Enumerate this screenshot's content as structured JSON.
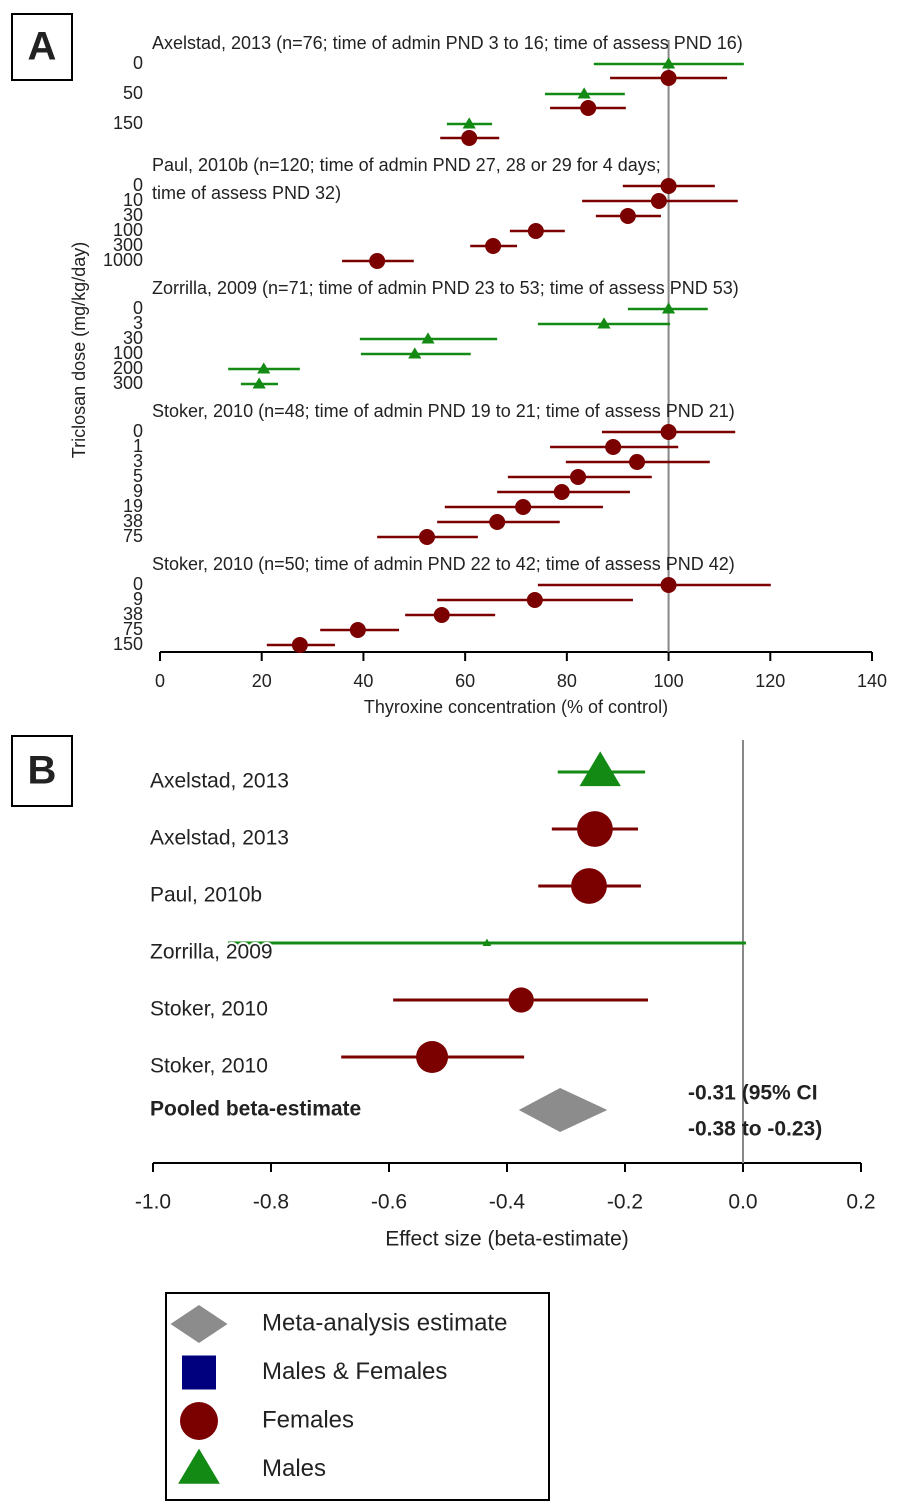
{
  "chart_data": [
    {
      "type": "forest",
      "panel_label": "A",
      "ylabel": "Triclosan dose (mg/kg/day)",
      "xlabel": "Thyroxine concentration (% of control)",
      "xlim": [
        0,
        140
      ],
      "xticks": [
        0,
        20,
        40,
        60,
        80,
        100,
        120,
        140
      ],
      "reference_line": 100,
      "studies": [
        {
          "label_lines": [
            "Axelstad, 2013 (n=76; time of admin PND 3 to 16; time of assess PND 16)"
          ],
          "doses": [
            "0",
            "50",
            "150"
          ],
          "series": [
            {
              "color": "#138a13",
              "shape": "triangle",
              "values": [
                100,
                83.4,
                60.8
              ],
              "lower": [
                85.3,
                75.7,
                56.4
              ],
              "upper": [
                114.8,
                91.4,
                65.3
              ]
            },
            {
              "color": "#7b0000",
              "shape": "circle",
              "values": [
                100,
                84.2,
                60.8
              ],
              "lower": [
                88.5,
                76.7,
                55.1
              ],
              "upper": [
                111.5,
                91.6,
                66.7
              ]
            }
          ]
        },
        {
          "label_lines": [
            "Paul, 2010b (n=120; time of admin PND 27, 28 or 29 for 4 days;",
            "time of assess PND 32)"
          ],
          "doses": [
            "0",
            "10",
            "30",
            "100",
            "300",
            "1000"
          ],
          "series": [
            {
              "color": "#7b0000",
              "shape": "circle",
              "values": [
                100,
                98.1,
                92,
                73.9,
                65.5,
                42.7
              ],
              "lower": [
                91,
                83,
                85.7,
                68.8,
                61,
                35.8
              ],
              "upper": [
                109.1,
                113.6,
                98.5,
                79.6,
                70.2,
                49.9
              ]
            }
          ]
        },
        {
          "label_lines": [
            "Zorrilla, 2009 (n=71; time of admin  PND 23 to 53; time of assess PND 53)"
          ],
          "doses": [
            "0",
            "3",
            "30",
            "100",
            "200",
            "300"
          ],
          "series": [
            {
              "color": "#138a13",
              "shape": "triangle",
              "values": [
                100,
                87.3,
                52.7,
                50.1,
                20.4,
                19.5
              ],
              "lower": [
                92,
                74.3,
                39.3,
                39.5,
                13.4,
                15.9
              ],
              "upper": [
                107.7,
                100.3,
                66.3,
                61.1,
                27.5,
                23.2
              ]
            }
          ]
        },
        {
          "label_lines": [
            "Stoker, 2010 (n=48; time of admin PND 19 to 21; time of assess PND 21)"
          ],
          "doses": [
            "0",
            "1",
            "3",
            "5",
            "9",
            "19",
            "38",
            "75"
          ],
          "series": [
            {
              "color": "#7b0000",
              "shape": "circle",
              "values": [
                100,
                89.1,
                93.8,
                82.2,
                79,
                71.4,
                66.3,
                52.5
              ],
              "lower": [
                86.9,
                76.7,
                79.8,
                68.4,
                66.3,
                56,
                54.5,
                42.7
              ],
              "upper": [
                113.1,
                101.9,
                108.1,
                96.7,
                92.4,
                87.1,
                78.6,
                62.5
              ]
            }
          ]
        },
        {
          "label_lines": [
            "Stoker, 2010 (n=50; time of admin PND 22 to 42; time of assess PND 42)"
          ],
          "doses": [
            "0",
            "9",
            "38",
            "75",
            "150"
          ],
          "series": [
            {
              "color": "#7b0000",
              "shape": "circle",
              "values": [
                100,
                73.7,
                55.4,
                38.9,
                27.5
              ],
              "lower": [
                74.3,
                54.5,
                48.2,
                31.5,
                21
              ],
              "upper": [
                120.1,
                93,
                65.9,
                47,
                34.4
              ]
            }
          ]
        }
      ]
    },
    {
      "type": "forest",
      "panel_label": "B",
      "xlabel": "Effect size (beta-estimate)",
      "xlim": [
        -1,
        0.2
      ],
      "xticks": [
        {
          "value": -1,
          "label": "-1.0"
        },
        -0.8,
        -0.6,
        -0.4,
        -0.2,
        {
          "value": 0,
          "label": "0.0"
        },
        0.2
      ],
      "reference_line": 0,
      "categories": [
        "Axelstad, 2013",
        "Axelstad, 2013",
        "Paul, 2010b",
        "Zorrilla, 2009",
        "Stoker, 2010",
        "Stoker, 2010"
      ],
      "values": [
        -0.242,
        -0.251,
        -0.261,
        -0.434,
        -0.376,
        -0.527
      ],
      "lower": [
        -0.314,
        -0.324,
        -0.347,
        -0.873,
        -0.593,
        -0.681
      ],
      "upper": [
        -0.166,
        -0.178,
        -0.173,
        0.005,
        -0.161,
        -0.371
      ],
      "weights": [
        22,
        20,
        20,
        1,
        10,
        16
      ],
      "colors": [
        "#138a13",
        "#7b0000",
        "#7b0000",
        "#138a13",
        "#7b0000",
        "#7b0000"
      ],
      "shapes": [
        "triangle",
        "circle",
        "circle",
        "triangle",
        "circle",
        "circle"
      ],
      "pooled": {
        "label": "Pooled beta-estimate",
        "value": -0.31,
        "lower": -0.38,
        "upper": -0.23,
        "color": "#8c8c8c",
        "value_labels": [
          "-0.31  (95% CI",
          "-0.38 to -0.23)"
        ]
      }
    }
  ],
  "legend": [
    {
      "label": "Meta-analysis estimate",
      "color": "#8c8c8c",
      "shape": "diamond"
    },
    {
      "label": "Males & Females",
      "color": "#00007f",
      "shape": "square"
    },
    {
      "label": "Females",
      "color": "#7b0000",
      "shape": "circle"
    },
    {
      "label": "Males",
      "color": "#138a13",
      "shape": "triangle"
    }
  ]
}
